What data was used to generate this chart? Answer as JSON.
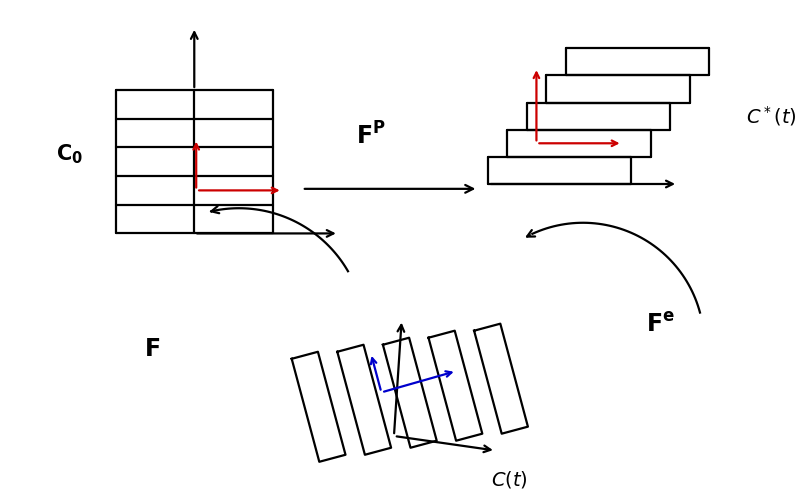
{
  "bg_color": "#ffffff",
  "label_C0": "$C_0$",
  "label_Cstar": "$C^*(t)$",
  "label_Ct": "$C(t)$",
  "grid_color": "#000000",
  "red_color": "#cc0000",
  "blue_color": "#0000cc",
  "lw": 1.6
}
